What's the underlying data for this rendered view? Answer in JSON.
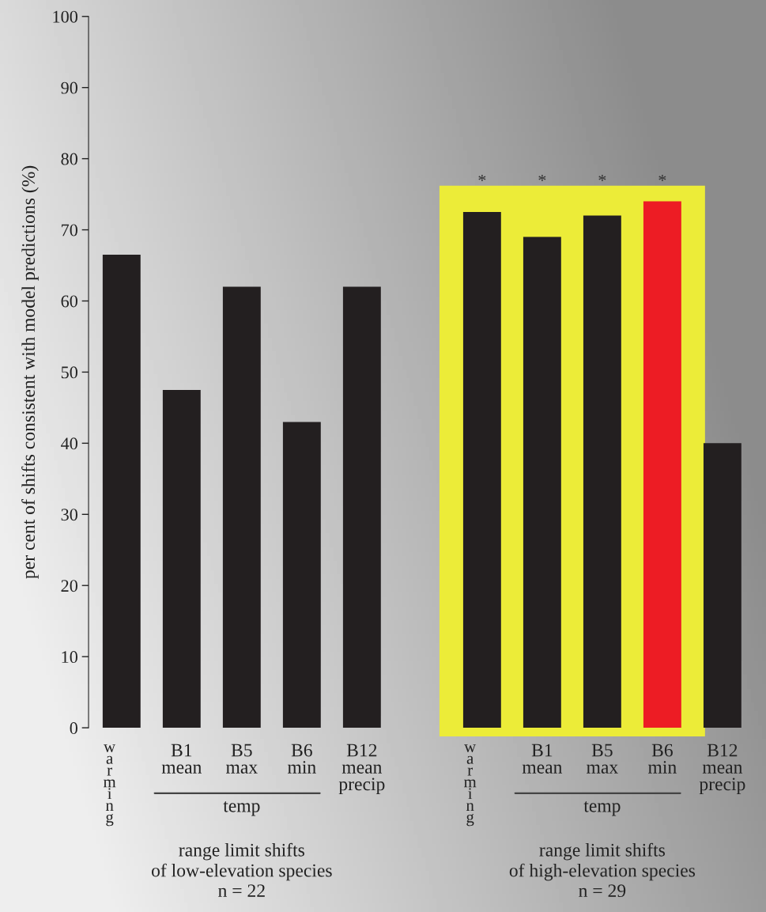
{
  "chart_data": {
    "type": "bar",
    "ylabel": "per cent of shifts consistent with model predictions (%)",
    "categories": [
      "warming",
      "B1\nmean",
      "B5\nmax",
      "B6\nmin",
      "B12\nmean\nprecip",
      null,
      "warming",
      "B1\nmean",
      "B5\nmax",
      "B6\nmin",
      "B12\nmean\nprecip"
    ],
    "values": [
      66.5,
      47.5,
      62,
      43,
      62,
      null,
      72.5,
      69,
      72,
      74,
      40
    ],
    "colors": [
      "#231f20",
      "#231f20",
      "#231f20",
      "#231f20",
      "#231f20",
      "#231f20",
      "#231f20",
      "#231f20",
      "#231f20",
      "#ed1c24",
      "#231f20"
    ],
    "value_labels": [
      null,
      null,
      null,
      null,
      null,
      null,
      "*",
      "*",
      "*",
      "*",
      null
    ],
    "ylim": [
      0,
      100
    ],
    "yticks": [
      0,
      10,
      20,
      30,
      40,
      50,
      60,
      70,
      80,
      90,
      100
    ],
    "annotations": [
      "temp",
      "temp",
      "range limit shifts\nof low-elevation species\nn = 22",
      "range limit shifts\nof high-elevation species\nn = 29"
    ],
    "grid": false
  }
}
